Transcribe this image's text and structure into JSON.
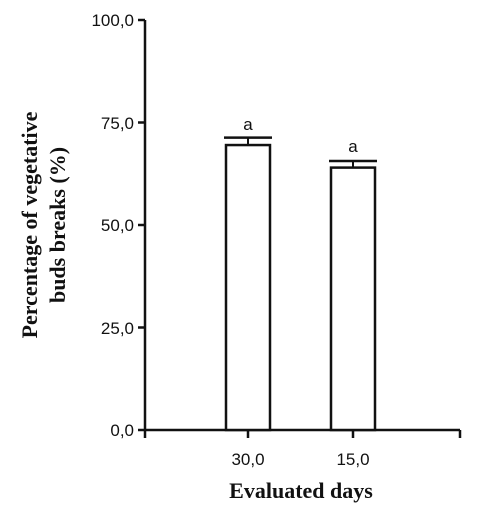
{
  "chart_data": {
    "type": "bar",
    "xlabel": "Evaluated days",
    "ylabel_lines": [
      "Percentage of vegetative",
      "buds breaks (%)"
    ],
    "ylim": [
      0,
      100
    ],
    "yticks": [
      "0,0",
      "25,0",
      "50,0",
      "75,0",
      "100,0"
    ],
    "categories": [
      "30,0",
      "15,0"
    ],
    "values": [
      69.5,
      64.0
    ],
    "error": [
      1.8,
      1.6
    ],
    "significance": [
      "a",
      "a"
    ],
    "grid": false,
    "legend": "none",
    "colors": {
      "bar_fill": "#ffffff",
      "bar_stroke": "#111111",
      "axis": "#111111"
    }
  }
}
